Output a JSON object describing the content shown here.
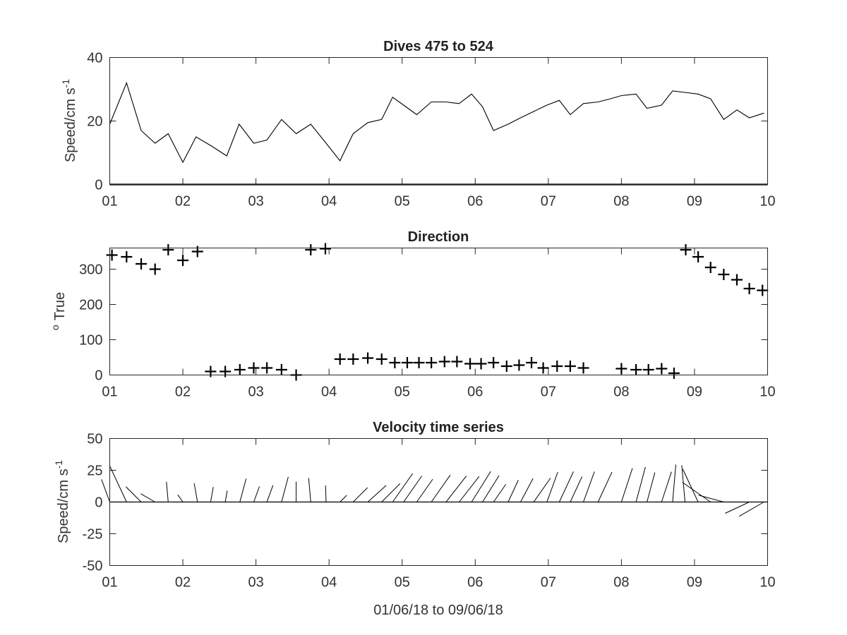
{
  "figure": {
    "xlabel": "01/06/18 to 09/06/18",
    "x_ticks": [
      "01",
      "02",
      "03",
      "04",
      "05",
      "06",
      "07",
      "08",
      "09",
      "10"
    ]
  },
  "chart_data": [
    {
      "type": "line",
      "title": "Dives 475 to 524",
      "ylabel": {
        "base": "Speed/cm s",
        "sup": "-1"
      },
      "xlim": [
        1,
        10
      ],
      "ylim": [
        0,
        40
      ],
      "y_ticks": [
        "0",
        "20",
        "40"
      ],
      "grid": false,
      "series": [
        {
          "x": [
            1.0,
            1.23,
            1.43,
            1.62,
            1.8,
            2.0,
            2.18,
            2.4,
            2.6,
            2.77,
            2.97,
            3.15,
            3.35,
            3.55,
            3.75,
            3.96,
            4.15,
            4.33,
            4.53,
            4.72,
            4.87,
            5.02,
            5.2,
            5.4,
            5.6,
            5.78,
            5.95,
            6.1,
            6.25,
            6.45,
            6.62,
            6.8,
            6.98,
            7.15,
            7.3,
            7.48,
            7.68,
            7.85,
            8.0,
            8.2,
            8.35,
            8.55,
            8.7,
            8.87,
            9.05,
            9.22,
            9.4,
            9.58,
            9.75,
            9.95
          ],
          "y": [
            19,
            32,
            17,
            13,
            16,
            7,
            15,
            12,
            9,
            19,
            13,
            14,
            20.5,
            16,
            19,
            13,
            7.5,
            16,
            19.5,
            20.5,
            27.5,
            25,
            22,
            26,
            26,
            25.5,
            28.5,
            24.5,
            17,
            19,
            21,
            23,
            25,
            26.5,
            22,
            25.5,
            26,
            27,
            28,
            28.5,
            24,
            25,
            29.5,
            29,
            28.5,
            27,
            20.5,
            23.5,
            21,
            22.5
          ]
        }
      ]
    },
    {
      "type": "scatter",
      "title": "Direction",
      "ylabel": {
        "base": "True",
        "sup": "o"
      },
      "xlim": [
        1,
        10
      ],
      "ylim": [
        0,
        360
      ],
      "y_ticks": [
        "0",
        "100",
        "200",
        "300"
      ],
      "marker": "+",
      "grid": false,
      "series": [
        {
          "x": [
            1.03,
            1.23,
            1.43,
            1.62,
            1.8,
            2.0,
            2.2,
            2.38,
            2.58,
            2.78,
            2.97,
            3.15,
            3.35,
            3.55,
            3.75,
            3.95,
            4.15,
            4.33,
            4.53,
            4.72,
            4.9,
            5.07,
            5.23,
            5.4,
            5.58,
            5.75,
            5.93,
            6.08,
            6.25,
            6.43,
            6.6,
            6.77,
            6.93,
            7.12,
            7.3,
            7.48,
            8.0,
            8.2,
            8.37,
            8.55,
            8.72,
            8.88,
            9.05,
            9.22,
            9.4,
            9.58,
            9.75,
            9.93
          ],
          "y": [
            340,
            335,
            315,
            300,
            355,
            325,
            350,
            10,
            10,
            15,
            20,
            20,
            15,
            0,
            355,
            358,
            45,
            45,
            48,
            45,
            35,
            35,
            35,
            35,
            38,
            38,
            32,
            32,
            35,
            25,
            28,
            35,
            20,
            25,
            25,
            20,
            18,
            15,
            15,
            18,
            5,
            355,
            335,
            305,
            285,
            270,
            245,
            240
          ]
        }
      ]
    },
    {
      "type": "quiver",
      "title": "Velocity time series",
      "ylabel": {
        "base": "Speed/cm s",
        "sup": "-1"
      },
      "xlim": [
        1,
        10
      ],
      "ylim": [
        -50,
        50
      ],
      "y_ticks": [
        "-50",
        "-25",
        "0",
        "25",
        "50"
      ],
      "grid": false,
      "series": [
        {
          "x": [
            1.0,
            1.23,
            1.43,
            1.62,
            1.8,
            2.0,
            2.2,
            2.38,
            2.58,
            2.78,
            2.97,
            3.15,
            3.35,
            3.55,
            3.75,
            3.96,
            4.15,
            4.33,
            4.53,
            4.72,
            4.87,
            5.02,
            5.2,
            5.4,
            5.6,
            5.78,
            5.95,
            6.1,
            6.25,
            6.45,
            6.62,
            6.8,
            6.98,
            7.15,
            7.3,
            7.48,
            7.68,
            8.0,
            8.2,
            8.35,
            8.55,
            8.7,
            8.87,
            9.05,
            9.22,
            9.4,
            9.58,
            9.75,
            9.95
          ],
          "speed": [
            19,
            32,
            17,
            13,
            16,
            7,
            15,
            12,
            9,
            19,
            13,
            14,
            20.5,
            16,
            19,
            13,
            7.5,
            16,
            19.5,
            20.5,
            27.5,
            25,
            22,
            26,
            26,
            25.5,
            28.5,
            24.5,
            17,
            19,
            21,
            23,
            25,
            26.5,
            22,
            25.5,
            26,
            28,
            28.5,
            24,
            25,
            29.5,
            29,
            28.5,
            27,
            20.5,
            23.5,
            21,
            22.5
          ],
          "direction": [
            340,
            335,
            315,
            300,
            355,
            325,
            350,
            10,
            10,
            15,
            20,
            20,
            15,
            0,
            355,
            358,
            45,
            45,
            48,
            45,
            35,
            35,
            35,
            35,
            38,
            38,
            32,
            32,
            35,
            25,
            28,
            35,
            20,
            25,
            25,
            20,
            25,
            18,
            15,
            15,
            18,
            5,
            355,
            335,
            305,
            285,
            270,
            245,
            240
          ]
        }
      ]
    }
  ]
}
